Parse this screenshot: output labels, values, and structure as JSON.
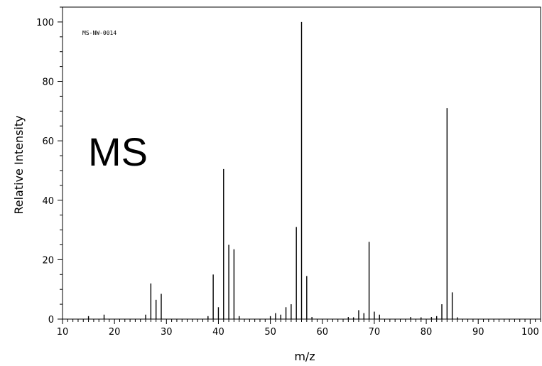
{
  "chart_data": {
    "type": "bar",
    "xlabel": "m/z",
    "ylabel": "Relative Intensity",
    "code": "MS-NW-0014",
    "annotation": "MS",
    "xlim": [
      10,
      102
    ],
    "ylim": [
      0,
      105
    ],
    "x_ticks": [
      10,
      20,
      30,
      40,
      50,
      60,
      70,
      80,
      90,
      100
    ],
    "y_ticks": [
      0,
      20,
      40,
      60,
      80,
      100
    ],
    "peaks": [
      {
        "mz": 15,
        "intensity": 1.0
      },
      {
        "mz": 18,
        "intensity": 1.5
      },
      {
        "mz": 26,
        "intensity": 1.5
      },
      {
        "mz": 27,
        "intensity": 12.0
      },
      {
        "mz": 28,
        "intensity": 6.5
      },
      {
        "mz": 29,
        "intensity": 8.5
      },
      {
        "mz": 38,
        "intensity": 1.0
      },
      {
        "mz": 39,
        "intensity": 15.0
      },
      {
        "mz": 40,
        "intensity": 4.0
      },
      {
        "mz": 41,
        "intensity": 50.5
      },
      {
        "mz": 42,
        "intensity": 25.0
      },
      {
        "mz": 43,
        "intensity": 23.5
      },
      {
        "mz": 44,
        "intensity": 1.0
      },
      {
        "mz": 50,
        "intensity": 1.0
      },
      {
        "mz": 51,
        "intensity": 2.0
      },
      {
        "mz": 52,
        "intensity": 1.5
      },
      {
        "mz": 53,
        "intensity": 4.0
      },
      {
        "mz": 54,
        "intensity": 5.0
      },
      {
        "mz": 55,
        "intensity": 31.0
      },
      {
        "mz": 56,
        "intensity": 100.0
      },
      {
        "mz": 57,
        "intensity": 14.5
      },
      {
        "mz": 58,
        "intensity": 0.7
      },
      {
        "mz": 65,
        "intensity": 0.7
      },
      {
        "mz": 66,
        "intensity": 0.6
      },
      {
        "mz": 67,
        "intensity": 3.0
      },
      {
        "mz": 68,
        "intensity": 2.0
      },
      {
        "mz": 69,
        "intensity": 26.0
      },
      {
        "mz": 70,
        "intensity": 2.5
      },
      {
        "mz": 71,
        "intensity": 1.5
      },
      {
        "mz": 77,
        "intensity": 0.7
      },
      {
        "mz": 79,
        "intensity": 0.6
      },
      {
        "mz": 81,
        "intensity": 0.7
      },
      {
        "mz": 82,
        "intensity": 1.0
      },
      {
        "mz": 83,
        "intensity": 5.0
      },
      {
        "mz": 84,
        "intensity": 71.0
      },
      {
        "mz": 85,
        "intensity": 9.0
      },
      {
        "mz": 86,
        "intensity": 0.6
      }
    ]
  }
}
